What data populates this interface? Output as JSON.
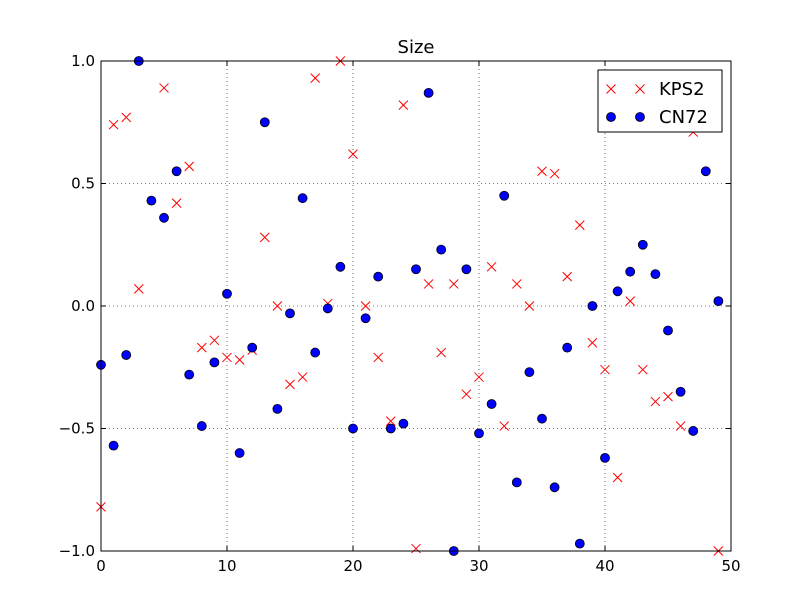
{
  "chart_data": {
    "type": "scatter",
    "title": "Size",
    "xlabel": "",
    "ylabel": "",
    "xlim": [
      0,
      50
    ],
    "ylim": [
      -1.0,
      1.0
    ],
    "xticks": [
      0,
      10,
      20,
      30,
      40,
      50
    ],
    "xtick_labels": [
      "0",
      "10",
      "20",
      "30",
      "40",
      "50"
    ],
    "yticks": [
      -1.0,
      -0.5,
      0.0,
      0.5,
      1.0
    ],
    "ytick_labels": [
      "−1.0",
      "−0.5",
      "0.0",
      "0.5",
      "1.0"
    ],
    "grid": true,
    "legend_position": "top-right",
    "series": [
      {
        "name": "KPS2",
        "marker": "x",
        "color": "#ff0000",
        "x": [
          0,
          1,
          2,
          3,
          5,
          6,
          7,
          8,
          9,
          10,
          11,
          12,
          13,
          14,
          15,
          16,
          17,
          18,
          19,
          20,
          21,
          22,
          23,
          24,
          25,
          26,
          27,
          28,
          29,
          30,
          31,
          32,
          33,
          34,
          35,
          36,
          37,
          38,
          39,
          40,
          41,
          42,
          43,
          44,
          45,
          46,
          47,
          49
        ],
        "y": [
          -0.82,
          0.74,
          0.77,
          0.07,
          0.89,
          0.42,
          0.57,
          -0.17,
          -0.14,
          -0.21,
          -0.22,
          -0.18,
          0.28,
          0.0,
          -0.32,
          -0.29,
          0.93,
          0.01,
          1.0,
          0.62,
          0.0,
          -0.21,
          -0.47,
          0.82,
          -0.99,
          0.09,
          -0.19,
          0.09,
          -0.36,
          -0.29,
          0.16,
          -0.49,
          0.09,
          0.0,
          0.55,
          0.54,
          0.12,
          0.33,
          -0.15,
          -0.26,
          -0.7,
          0.02,
          -0.26,
          -0.39,
          -0.37,
          -0.49,
          0.71,
          -1.0
        ]
      },
      {
        "name": "CN72",
        "marker": "o",
        "color": "#0000ff",
        "x": [
          0,
          1,
          2,
          3,
          4,
          5,
          6,
          7,
          8,
          9,
          10,
          11,
          12,
          13,
          14,
          15,
          16,
          17,
          18,
          19,
          20,
          21,
          22,
          23,
          24,
          25,
          26,
          27,
          28,
          29,
          30,
          31,
          32,
          33,
          34,
          35,
          36,
          37,
          38,
          39,
          40,
          41,
          42,
          43,
          44,
          45,
          46,
          47,
          48,
          49
        ],
        "y": [
          -0.24,
          -0.57,
          -0.2,
          1.0,
          0.43,
          0.36,
          0.55,
          -0.28,
          -0.49,
          -0.23,
          0.05,
          -0.6,
          -0.17,
          0.75,
          -0.42,
          -0.03,
          0.44,
          -0.19,
          -0.01,
          0.16,
          -0.5,
          -0.05,
          0.12,
          -0.5,
          -0.48,
          0.15,
          0.87,
          0.23,
          -1.0,
          0.15,
          -0.52,
          -0.4,
          0.45,
          -0.72,
          -0.27,
          -0.46,
          -0.74,
          -0.17,
          -0.97,
          0.0,
          -0.62,
          0.06,
          0.14,
          0.25,
          0.13,
          -0.1,
          -0.35,
          -0.51,
          0.55,
          0.02
        ]
      }
    ]
  }
}
